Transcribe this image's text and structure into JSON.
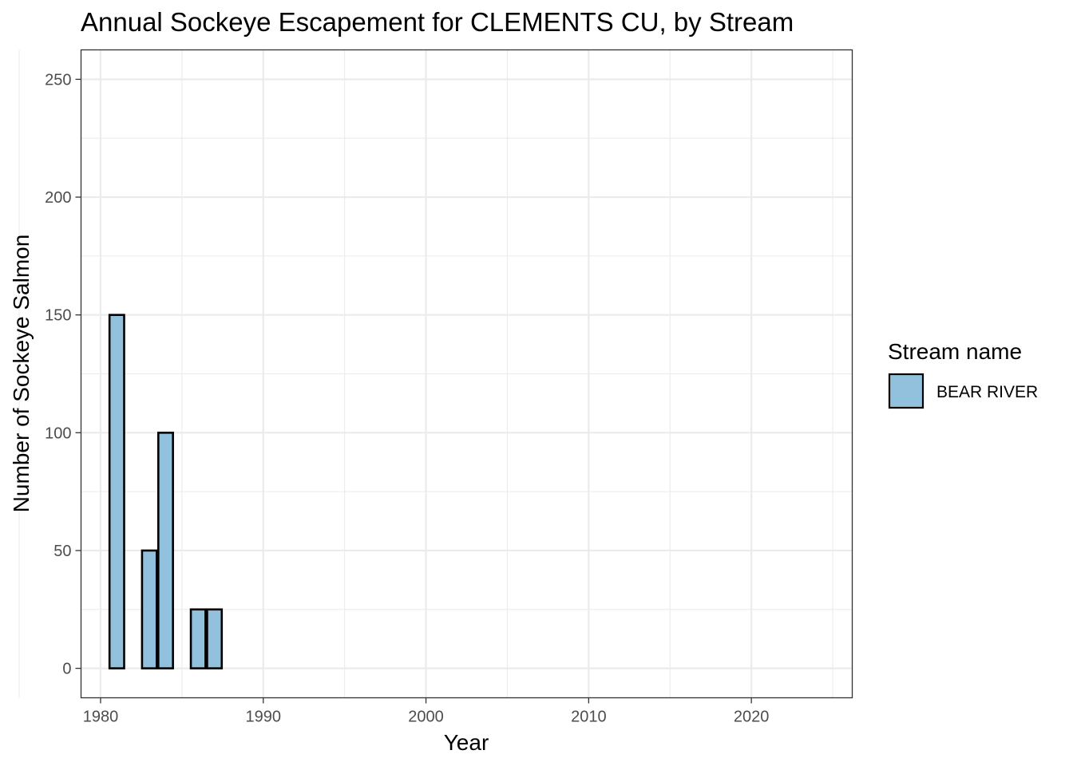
{
  "chart_data": {
    "type": "bar",
    "title": "Annual Sockeye Escapement for CLEMENTS CU, by Stream",
    "xlabel": "Year",
    "ylabel": "Number of Sockeye Salmon",
    "xlim": [
      1978.8,
      2026.2
    ],
    "ylim": [
      -12.5,
      262.5
    ],
    "x_ticks": [
      "1980",
      "1990",
      "2000",
      "2010",
      "2020"
    ],
    "y_ticks": [
      "0",
      "50",
      "100",
      "150",
      "200",
      "250"
    ],
    "grid": true,
    "legend": {
      "title": "Stream name",
      "position": "right",
      "entries": [
        "BEAR RIVER"
      ]
    },
    "series": [
      {
        "name": "BEAR RIVER",
        "color": "#92c1dd",
        "x": [
          1981,
          1983,
          1984,
          1986,
          1987
        ],
        "values": [
          150,
          50,
          100,
          25,
          25
        ]
      }
    ]
  }
}
